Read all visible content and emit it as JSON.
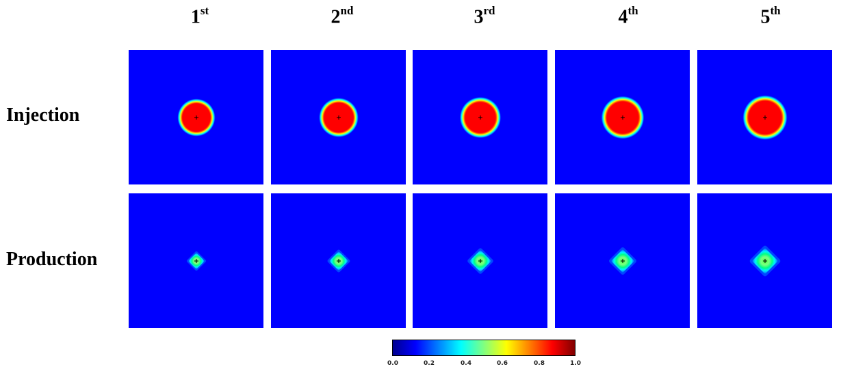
{
  "columns": [
    {
      "num": "1",
      "sup": "st"
    },
    {
      "num": "2",
      "sup": "nd"
    },
    {
      "num": "3",
      "sup": "rd"
    },
    {
      "num": "4",
      "sup": "th"
    },
    {
      "num": "5",
      "sup": "th"
    }
  ],
  "rows": [
    {
      "label": "Injection",
      "shape": "circle"
    },
    {
      "label": "Production",
      "shape": "diamond"
    }
  ],
  "colorbar": {
    "ticks": [
      "0.0",
      "0.2",
      "0.4",
      "0.6",
      "0.8",
      "1.0"
    ],
    "range": [
      0.0,
      1.0
    ],
    "colormap": "jet",
    "colors": [
      "#00008f",
      "#0000ff",
      "#0080ff",
      "#00ffff",
      "#80ff80",
      "#ffff00",
      "#ff8000",
      "#ff0000",
      "#800000"
    ]
  },
  "background_color": "#0000ff"
}
